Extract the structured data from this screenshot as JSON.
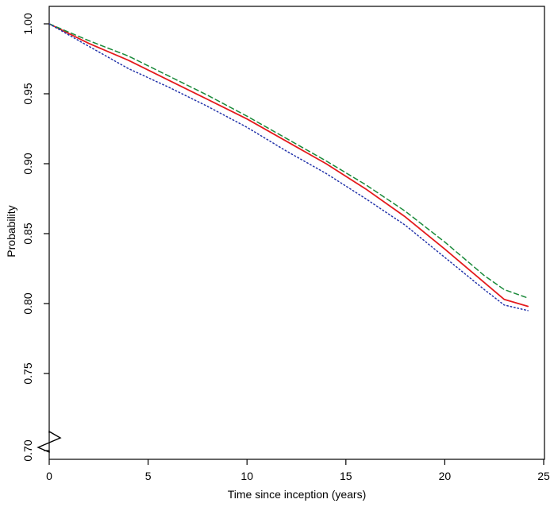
{
  "chart_data": {
    "type": "line",
    "title": "",
    "xlabel": "Time since inception (years)",
    "ylabel": "Probability",
    "xlim": [
      0,
      25
    ],
    "ylim": [
      0.7,
      1.0
    ],
    "x_ticks": [
      "0",
      "5",
      "10",
      "15",
      "20",
      "25"
    ],
    "y_ticks": [
      "0.70",
      "0.75",
      "0.80",
      "0.85",
      "0.90",
      "0.95",
      "1.00"
    ],
    "axis_break": "y",
    "grid": false,
    "legend": "none",
    "series": [
      {
        "color": "#e41a1c",
        "line_style": "solid",
        "x": [
          0,
          2,
          4,
          6,
          8,
          10,
          12,
          14,
          16,
          18,
          20,
          22,
          23,
          24.2
        ],
        "y": [
          1.0,
          0.986,
          0.974,
          0.96,
          0.946,
          0.932,
          0.916,
          0.9,
          0.882,
          0.862,
          0.839,
          0.815,
          0.803,
          0.798
        ]
      },
      {
        "color": "#1a8a3a",
        "line_style": "dashed",
        "x": [
          0,
          2,
          4,
          6,
          8,
          10,
          12,
          14,
          16,
          18,
          20,
          22,
          23,
          24.2
        ],
        "y": [
          1.0,
          0.988,
          0.977,
          0.963,
          0.949,
          0.934,
          0.918,
          0.902,
          0.885,
          0.866,
          0.844,
          0.82,
          0.81,
          0.804
        ]
      },
      {
        "color": "#2233aa",
        "line_style": "dotted",
        "x": [
          0,
          2,
          4,
          6,
          8,
          10,
          12,
          14,
          16,
          18,
          20,
          22,
          23,
          24.2
        ],
        "y": [
          1.0,
          0.984,
          0.968,
          0.955,
          0.941,
          0.926,
          0.909,
          0.893,
          0.875,
          0.856,
          0.833,
          0.81,
          0.799,
          0.795
        ]
      }
    ]
  }
}
